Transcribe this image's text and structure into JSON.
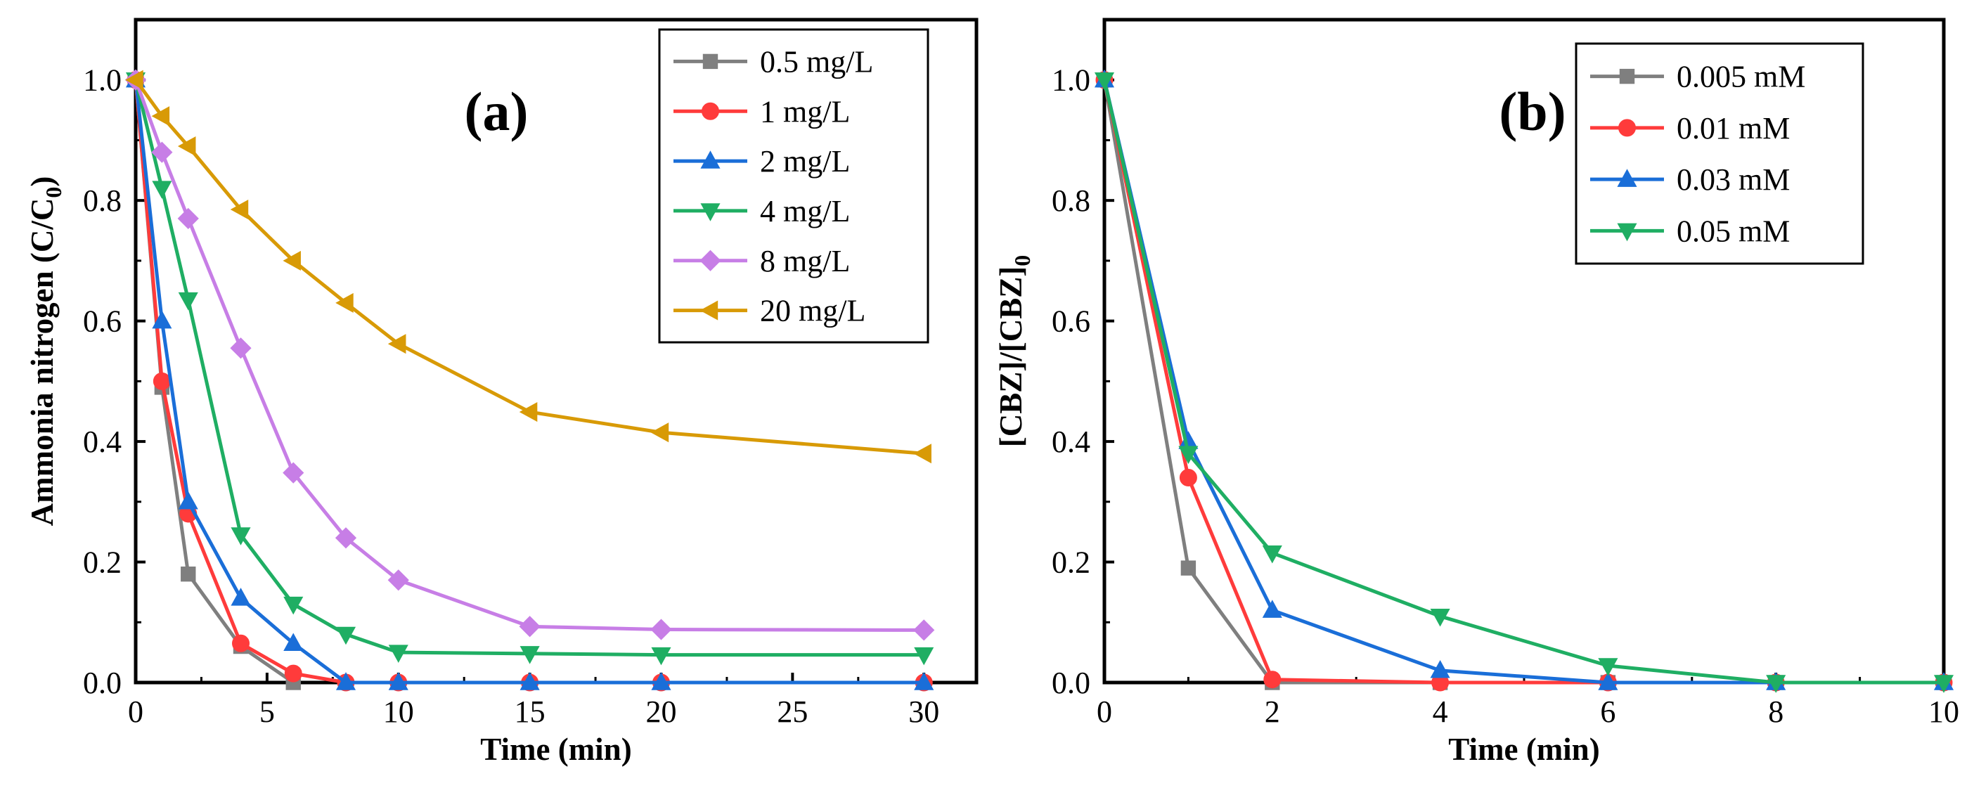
{
  "chart_data": [
    {
      "id": "a",
      "type": "line",
      "panel_label": "(a)",
      "xlabel": "Time (min)",
      "ylabel": "Ammonia nitrogen (C/C",
      "ylabel_sub": "0",
      "ylabel_close": ")",
      "xlim": [
        0,
        32
      ],
      "ylim": [
        0,
        1.1
      ],
      "xticks": [
        0,
        5,
        10,
        15,
        20,
        25,
        30
      ],
      "yticks": [
        "0.0",
        "0.2",
        "0.4",
        "0.6",
        "0.8",
        "1.0"
      ],
      "legend_position": "top-right",
      "series": [
        {
          "name": "0.5 mg/L",
          "color": "#7f7f7f",
          "marker": "square",
          "x": [
            0,
            1,
            2,
            4,
            6
          ],
          "values": [
            1.0,
            0.49,
            0.18,
            0.06,
            0.0
          ]
        },
        {
          "name": "1 mg/L",
          "color": "#ff3b3b",
          "marker": "circle",
          "x": [
            0,
            1,
            2,
            4,
            6,
            8,
            10,
            15,
            20,
            30
          ],
          "values": [
            1.0,
            0.5,
            0.28,
            0.065,
            0.015,
            0.0,
            0.0,
            0.0,
            0.0,
            0.0
          ]
        },
        {
          "name": "2 mg/L",
          "color": "#1a6ed8",
          "marker": "triangle-up",
          "x": [
            0,
            1,
            2,
            4,
            6,
            8,
            10,
            15,
            20,
            30
          ],
          "values": [
            1.0,
            0.6,
            0.3,
            0.14,
            0.065,
            0.0,
            0.0,
            0.0,
            0.0,
            0.0
          ]
        },
        {
          "name": "4 mg/L",
          "color": "#1fae63",
          "marker": "triangle-down",
          "x": [
            0,
            1,
            2,
            4,
            6,
            8,
            10,
            15,
            20,
            30
          ],
          "values": [
            1.0,
            0.82,
            0.635,
            0.245,
            0.13,
            0.08,
            0.05,
            0.048,
            0.046,
            0.046
          ]
        },
        {
          "name": "8 mg/L",
          "color": "#c77ee6",
          "marker": "diamond",
          "x": [
            0,
            1,
            2,
            4,
            6,
            8,
            10,
            15,
            20,
            30
          ],
          "values": [
            1.0,
            0.88,
            0.77,
            0.555,
            0.348,
            0.24,
            0.17,
            0.093,
            0.088,
            0.087
          ]
        },
        {
          "name": "20 mg/L",
          "color": "#d89a06",
          "marker": "triangle-left",
          "x": [
            0,
            1,
            2,
            4,
            6,
            8,
            10,
            15,
            20,
            30
          ],
          "values": [
            1.0,
            0.94,
            0.89,
            0.785,
            0.7,
            0.63,
            0.562,
            0.449,
            0.415,
            0.38
          ]
        }
      ]
    },
    {
      "id": "b",
      "type": "line",
      "panel_label": "(b)",
      "xlabel": "Time (min)",
      "ylabel": "[CBZ]/[CBZ]",
      "ylabel_sub": "0",
      "ylabel_close": "",
      "xlim": [
        0,
        10
      ],
      "ylim": [
        0,
        1.1
      ],
      "xticks": [
        0,
        2,
        4,
        6,
        8,
        10
      ],
      "yticks": [
        "0.0",
        "0.2",
        "0.4",
        "0.6",
        "0.8",
        "1.0"
      ],
      "legend_position": "top-right",
      "series": [
        {
          "name": "0.005 mM",
          "color": "#7f7f7f",
          "marker": "square",
          "x": [
            0,
            1,
            2,
            4,
            6,
            8,
            10
          ],
          "values": [
            1.0,
            0.19,
            0.0,
            0.0,
            0.0,
            0.0,
            0.0
          ]
        },
        {
          "name": "0.01 mM",
          "color": "#ff3b3b",
          "marker": "circle",
          "x": [
            0,
            1,
            2,
            4,
            6,
            8,
            10
          ],
          "values": [
            1.0,
            0.34,
            0.005,
            0.0,
            0.0,
            0.0,
            0.0
          ]
        },
        {
          "name": "0.03 mM",
          "color": "#1a6ed8",
          "marker": "triangle-up",
          "x": [
            0,
            1,
            2,
            4,
            6,
            8,
            10
          ],
          "values": [
            1.0,
            0.4,
            0.12,
            0.02,
            0.0,
            0.0,
            0.0
          ]
        },
        {
          "name": "0.05 mM",
          "color": "#1fae63",
          "marker": "triangle-down",
          "x": [
            0,
            1,
            2,
            4,
            6,
            8,
            10
          ],
          "values": [
            1.0,
            0.38,
            0.215,
            0.11,
            0.028,
            0.0,
            0.0
          ]
        }
      ]
    }
  ]
}
